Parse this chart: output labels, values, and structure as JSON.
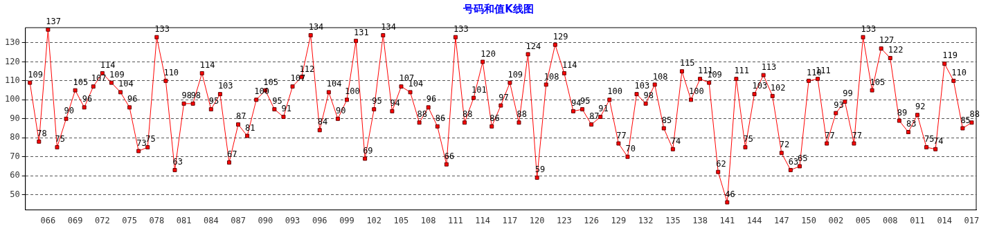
{
  "chart_data": {
    "type": "line",
    "title": "号码和值K线图",
    "categories": [
      null,
      null,
      "066",
      null,
      null,
      "069",
      null,
      null,
      "072",
      null,
      null,
      "075",
      null,
      null,
      "078",
      null,
      null,
      "081",
      null,
      null,
      "084",
      null,
      null,
      "087",
      null,
      null,
      "090",
      null,
      null,
      "093",
      null,
      null,
      "096",
      null,
      null,
      "099",
      null,
      null,
      "102",
      null,
      null,
      "105",
      null,
      null,
      "108",
      null,
      null,
      "111",
      null,
      null,
      "114",
      null,
      null,
      "117",
      null,
      null,
      "120",
      null,
      null,
      "123",
      null,
      null,
      "126",
      null,
      null,
      "129",
      null,
      null,
      "132",
      null,
      null,
      "135",
      null,
      null,
      "138",
      null,
      null,
      "141",
      null,
      null,
      "144",
      null,
      null,
      "147",
      null,
      null,
      "150",
      null,
      null,
      "002",
      null,
      null,
      "005",
      null,
      null,
      "008",
      null,
      null,
      "011",
      null,
      null,
      "014",
      null,
      null,
      "017"
    ],
    "series": [
      {
        "color": "#ff0000",
        "values": [
          109,
          78,
          137,
          75,
          90,
          105,
          96,
          107,
          114,
          109,
          104,
          96,
          73,
          75,
          133,
          110,
          63,
          98,
          98,
          114,
          95,
          103,
          67,
          87,
          81,
          100,
          105,
          95,
          91,
          107,
          112,
          134,
          84,
          104,
          90,
          100,
          131,
          69,
          95,
          134,
          94,
          107,
          104,
          88,
          96,
          86,
          66,
          133,
          88,
          101,
          120,
          86,
          97,
          109,
          88,
          124,
          59,
          108,
          129,
          114,
          94,
          95,
          87,
          91,
          100,
          77,
          70,
          103,
          98,
          108,
          85,
          74,
          115,
          100,
          111,
          109,
          62,
          46,
          111,
          75,
          103,
          113,
          102,
          72,
          63,
          65,
          110,
          111,
          77,
          93,
          99,
          77,
          133,
          105,
          127,
          122,
          89,
          83,
          92,
          75,
          74,
          119,
          110,
          85,
          88
        ]
      }
    ],
    "ylim": [
      42,
      138
    ],
    "yticks": [
      50,
      60,
      70,
      80,
      90,
      100,
      110,
      120,
      130
    ],
    "grid": "y",
    "legend": false,
    "marker": "square",
    "line_style": "solid",
    "data_labels": true
  }
}
